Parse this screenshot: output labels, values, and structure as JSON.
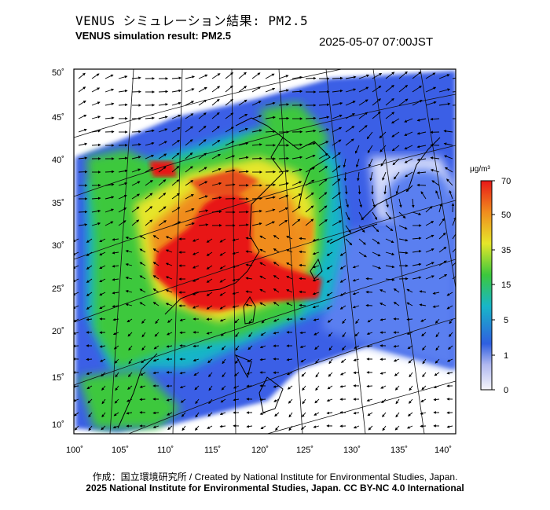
{
  "title_jp": "VENUS シミュレーション結果: PM2.5",
  "title_en": "VENUS simulation result: PM2.5",
  "timestamp": "2025-05-07 07:00JST",
  "lat_labels": [
    "50˚",
    "45˚",
    "40˚",
    "35˚",
    "30˚",
    "25˚",
    "20˚",
    "15˚",
    "10˚"
  ],
  "lon_labels": [
    "100˚",
    "105˚",
    "110˚",
    "115˚",
    "120˚",
    "125˚",
    "130˚",
    "135˚",
    "140˚"
  ],
  "colorbar": {
    "unit": "μg/m³",
    "ticks": [
      "70",
      "50",
      "35",
      "15",
      "5",
      "1",
      "0"
    ]
  },
  "credit": "作成：国立環境研究所 / Created by National Institute for Environmental Studies, Japan.",
  "license": "2025 National Institute for Environmental Studies, Japan. CC BY-NC 4.0 International",
  "colors": {
    "low": "#f2f2f8",
    "blue": "#2f5fe0",
    "cyan": "#18b6c8",
    "green": "#3cc83c",
    "yellow": "#e6e62a",
    "orange": "#f08c1e",
    "red": "#e81818"
  }
}
